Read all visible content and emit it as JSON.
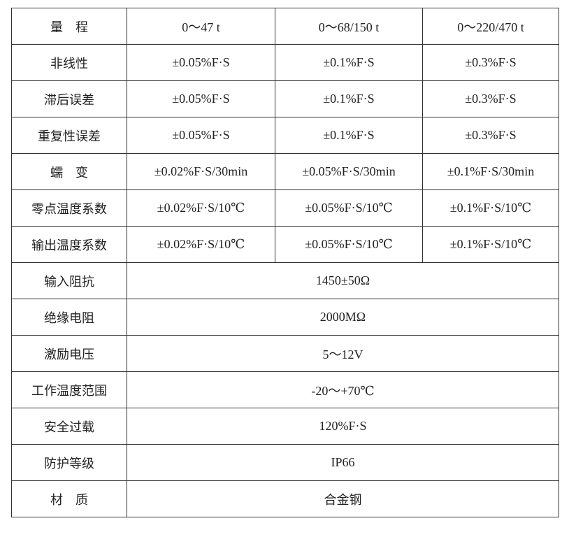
{
  "table": {
    "header": {
      "label": "量　程",
      "values": [
        "0～47 t",
        "0～68/150 t",
        "0～220/470 t"
      ]
    },
    "split_rows": [
      {
        "label": "非线性",
        "values": [
          "±0.05%F·S",
          "±0.1%F·S",
          "±0.3%F·S"
        ]
      },
      {
        "label": "滞后误差",
        "values": [
          "±0.05%F·S",
          "±0.1%F·S",
          "±0.3%F·S"
        ]
      },
      {
        "label": "重复性误差",
        "values": [
          "±0.05%F·S",
          "±0.1%F·S",
          "±0.3%F·S"
        ]
      },
      {
        "label": "蠕　变",
        "values": [
          "±0.02%F·S/30min",
          "±0.05%F·S/30min",
          "±0.1%F·S/30min"
        ]
      },
      {
        "label": "零点温度系数",
        "values": [
          "±0.02%F·S/10℃",
          "±0.05%F·S/10℃",
          "±0.1%F·S/10℃"
        ]
      },
      {
        "label": "输出温度系数",
        "values": [
          "±0.02%F·S/10℃",
          "±0.05%F·S/10℃",
          "±0.1%F·S/10℃"
        ]
      }
    ],
    "merged_rows": [
      {
        "label": "输入阻抗",
        "value": "1450±50Ω"
      },
      {
        "label": "绝缘电阻",
        "value": "2000MΩ"
      },
      {
        "label": "激励电压",
        "value": "5～12V"
      },
      {
        "label": "工作温度范围",
        "value": "-20～+70℃"
      },
      {
        "label": "安全过载",
        "value": "120%F·S"
      },
      {
        "label": "防护等级",
        "value": "IP66"
      },
      {
        "label": "材　质",
        "value": "合金钢"
      }
    ]
  }
}
